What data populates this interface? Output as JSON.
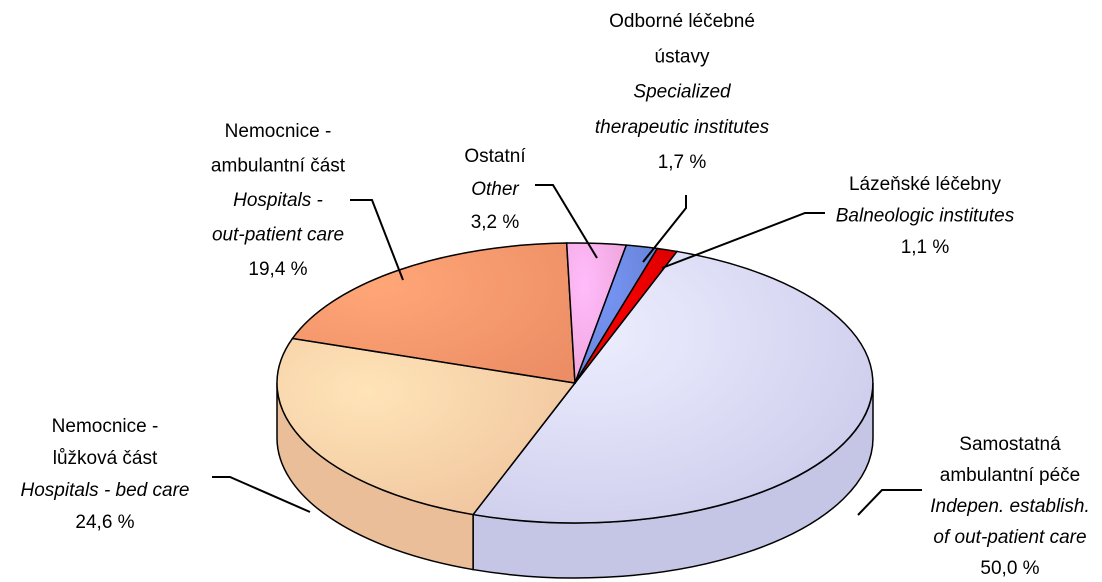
{
  "chart_data": {
    "type": "pie3d",
    "categories": [
      [
        "Samostatná",
        "ambulantní péče"
      ],
      [
        "Nemocnice -",
        "lůžková část"
      ],
      [
        "Nemocnice -",
        "ambulantní část"
      ],
      [
        "Ostatní"
      ],
      [
        "Odborné léčebné",
        "ústavy"
      ],
      [
        "Lázeňské léčebny"
      ]
    ],
    "categories_en": [
      [
        "Indepen. establish.",
        "of out-patient care"
      ],
      [
        "Hospitals - bed care"
      ],
      [
        "Hospitals -",
        "out-patient care"
      ],
      [
        "Other"
      ],
      [
        "Specialized",
        "therapeutic institutes"
      ],
      [
        "Balneologic institutes"
      ]
    ],
    "values": [
      50.0,
      24.6,
      19.4,
      3.2,
      1.7,
      1.1
    ],
    "value_labels": [
      "50,0 %",
      "24,6 %",
      "19,4 %",
      "3,2 %",
      "1,7 %",
      "1,1 %"
    ],
    "colors": [
      "#d4d4f6",
      "#fccca4",
      "#f8946a",
      "#f8a8e0",
      "#6a86dc",
      "#e00000"
    ]
  }
}
